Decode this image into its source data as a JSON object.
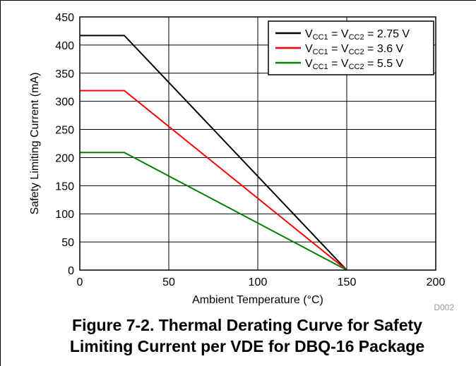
{
  "chart_data": {
    "type": "line",
    "xlabel": "Ambient Temperature (°C)",
    "ylabel": "Safety Limiting Current (mA)",
    "xlim": [
      0,
      200
    ],
    "ylim": [
      0,
      450
    ],
    "xticks": [
      0,
      50,
      100,
      150,
      200
    ],
    "yticks": [
      0,
      50,
      100,
      150,
      200,
      250,
      300,
      350,
      400,
      450
    ],
    "grid": true,
    "legend_position": "top-right",
    "series": [
      {
        "label_main": "V",
        "sub1": "CC1",
        "mid": " = V",
        "sub2": "CC2",
        "tail": " = 2.75 V",
        "color": "#000000",
        "x": [
          0,
          25,
          150
        ],
        "y": [
          417,
          417,
          0
        ]
      },
      {
        "label_main": "V",
        "sub1": "CC1",
        "mid": " = V",
        "sub2": "CC2",
        "tail": " = 3.6 V",
        "color": "#ff0000",
        "x": [
          0,
          25,
          150
        ],
        "y": [
          319,
          319,
          0
        ]
      },
      {
        "label_main": "V",
        "sub1": "CC1",
        "mid": " = V",
        "sub2": "CC2",
        "tail": " = 5.5 V",
        "color": "#008000",
        "x": [
          0,
          25,
          150
        ],
        "y": [
          209,
          209,
          0
        ]
      }
    ],
    "figure_id": "D002"
  },
  "caption": {
    "line1": "Figure 7-2. Thermal Derating Curve for Safety",
    "line2": "Limiting Current per VDE for DBQ-16 Package"
  }
}
